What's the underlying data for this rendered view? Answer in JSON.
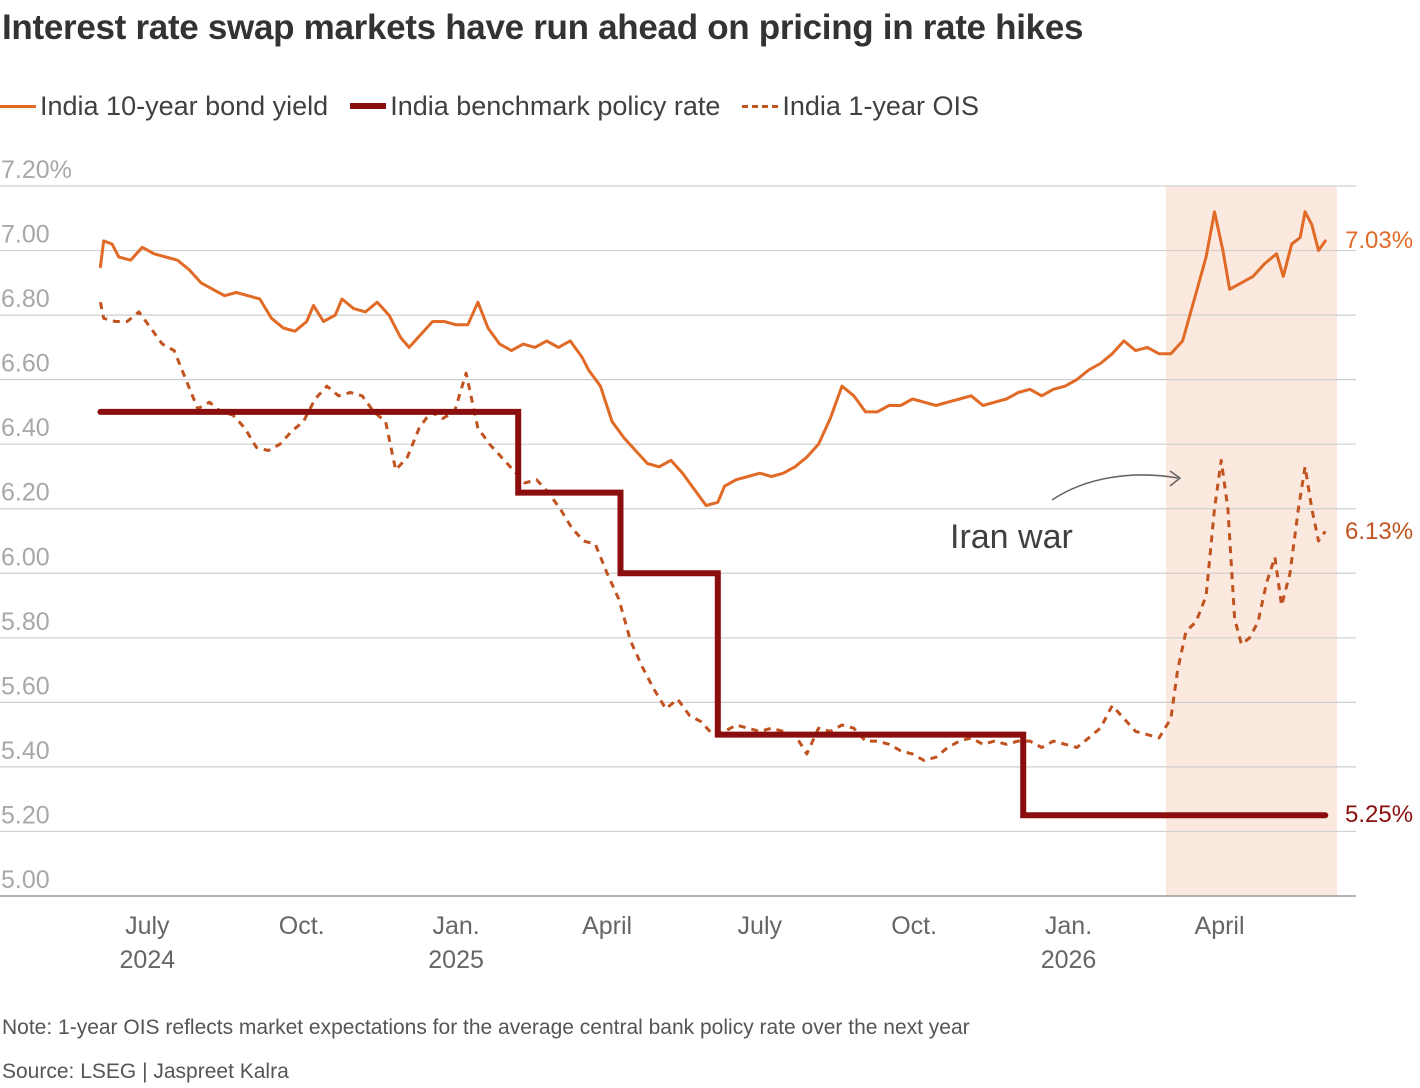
{
  "title": "Interest rate swap markets have run ahead on pricing in rate hikes",
  "legend": {
    "bond": "India 10-year bond yield",
    "policy": "India benchmark policy rate",
    "ois": "India 1-year OIS"
  },
  "note": "Note: 1-year OIS reflects market expectations for the average central bank policy rate over the next year",
  "source": "Source: LSEG | Jaspreet Kalra",
  "colors": {
    "bond": "#e06a26",
    "policy": "#8b0e0e",
    "ois": "#c0531f",
    "shade": "#fbe9df",
    "grid": "#cfcfcf",
    "tick": "#a8a8a8"
  },
  "chart_data": {
    "type": "line",
    "x_range": [
      "2024-06-01",
      "2026-06-10"
    ],
    "ylim": [
      5.0,
      7.2
    ],
    "y_ticks": [
      {
        "value": 7.2,
        "label": "7.20%"
      },
      {
        "value": 7.0,
        "label": "7.00"
      },
      {
        "value": 6.8,
        "label": "6.80"
      },
      {
        "value": 6.6,
        "label": "6.60"
      },
      {
        "value": 6.4,
        "label": "6.40"
      },
      {
        "value": 6.2,
        "label": "6.20"
      },
      {
        "value": 6.0,
        "label": "6.00"
      },
      {
        "value": 5.8,
        "label": "5.80"
      },
      {
        "value": 5.6,
        "label": "5.60"
      },
      {
        "value": 5.4,
        "label": "5.40"
      },
      {
        "value": 5.2,
        "label": "5.20"
      },
      {
        "value": 5.0,
        "label": "5.00"
      }
    ],
    "x_ticks": [
      {
        "date": "2024-07-01",
        "line1": "July",
        "line2": "2024"
      },
      {
        "date": "2024-10-01",
        "line1": "Oct.",
        "line2": ""
      },
      {
        "date": "2025-01-01",
        "line1": "Jan.",
        "line2": "2025"
      },
      {
        "date": "2025-04-01",
        "line1": "April",
        "line2": ""
      },
      {
        "date": "2025-07-01",
        "line1": "July",
        "line2": ""
      },
      {
        "date": "2025-10-01",
        "line1": "Oct.",
        "line2": ""
      },
      {
        "date": "2026-01-01",
        "line1": "Jan.",
        "line2": "2026"
      },
      {
        "date": "2026-04-01",
        "line1": "April",
        "line2": ""
      }
    ],
    "shaded_region": {
      "start": "2026-02-28",
      "end": "2026-06-10"
    },
    "annotation": {
      "text": "Iran war"
    },
    "end_labels": {
      "bond": "7.03%",
      "ois": "6.13%",
      "policy": "5.25%"
    },
    "series": [
      {
        "name": "India 10-year bond yield",
        "key": "bond",
        "points": [
          [
            "2024-06-03",
            6.95
          ],
          [
            "2024-06-05",
            7.03
          ],
          [
            "2024-06-10",
            7.02
          ],
          [
            "2024-06-14",
            6.98
          ],
          [
            "2024-06-21",
            6.97
          ],
          [
            "2024-06-28",
            7.01
          ],
          [
            "2024-07-05",
            6.99
          ],
          [
            "2024-07-12",
            6.98
          ],
          [
            "2024-07-19",
            6.97
          ],
          [
            "2024-07-26",
            6.94
          ],
          [
            "2024-08-02",
            6.9
          ],
          [
            "2024-08-09",
            6.88
          ],
          [
            "2024-08-16",
            6.86
          ],
          [
            "2024-08-23",
            6.87
          ],
          [
            "2024-08-30",
            6.86
          ],
          [
            "2024-09-06",
            6.85
          ],
          [
            "2024-09-13",
            6.79
          ],
          [
            "2024-09-20",
            6.76
          ],
          [
            "2024-09-27",
            6.75
          ],
          [
            "2024-10-04",
            6.78
          ],
          [
            "2024-10-08",
            6.83
          ],
          [
            "2024-10-14",
            6.78
          ],
          [
            "2024-10-21",
            6.8
          ],
          [
            "2024-10-25",
            6.85
          ],
          [
            "2024-11-01",
            6.82
          ],
          [
            "2024-11-08",
            6.81
          ],
          [
            "2024-11-15",
            6.84
          ],
          [
            "2024-11-22",
            6.8
          ],
          [
            "2024-11-29",
            6.73
          ],
          [
            "2024-12-04",
            6.7
          ],
          [
            "2024-12-11",
            6.74
          ],
          [
            "2024-12-18",
            6.78
          ],
          [
            "2024-12-25",
            6.78
          ],
          [
            "2025-01-01",
            6.77
          ],
          [
            "2025-01-08",
            6.77
          ],
          [
            "2025-01-14",
            6.84
          ],
          [
            "2025-01-20",
            6.76
          ],
          [
            "2025-01-27",
            6.71
          ],
          [
            "2025-02-03",
            6.69
          ],
          [
            "2025-02-10",
            6.71
          ],
          [
            "2025-02-17",
            6.7
          ],
          [
            "2025-02-24",
            6.72
          ],
          [
            "2025-03-03",
            6.7
          ],
          [
            "2025-03-10",
            6.72
          ],
          [
            "2025-03-17",
            6.67
          ],
          [
            "2025-03-21",
            6.63
          ],
          [
            "2025-03-28",
            6.58
          ],
          [
            "2025-04-04",
            6.47
          ],
          [
            "2025-04-11",
            6.42
          ],
          [
            "2025-04-18",
            6.38
          ],
          [
            "2025-04-25",
            6.34
          ],
          [
            "2025-05-02",
            6.33
          ],
          [
            "2025-05-09",
            6.35
          ],
          [
            "2025-05-16",
            6.31
          ],
          [
            "2025-05-23",
            6.26
          ],
          [
            "2025-05-30",
            6.21
          ],
          [
            "2025-06-06",
            6.22
          ],
          [
            "2025-06-10",
            6.27
          ],
          [
            "2025-06-17",
            6.29
          ],
          [
            "2025-06-24",
            6.3
          ],
          [
            "2025-07-01",
            6.31
          ],
          [
            "2025-07-08",
            6.3
          ],
          [
            "2025-07-15",
            6.31
          ],
          [
            "2025-07-22",
            6.33
          ],
          [
            "2025-07-29",
            6.36
          ],
          [
            "2025-08-05",
            6.4
          ],
          [
            "2025-08-12",
            6.48
          ],
          [
            "2025-08-19",
            6.58
          ],
          [
            "2025-08-26",
            6.55
          ],
          [
            "2025-09-02",
            6.5
          ],
          [
            "2025-09-09",
            6.5
          ],
          [
            "2025-09-16",
            6.52
          ],
          [
            "2025-09-23",
            6.52
          ],
          [
            "2025-09-30",
            6.54
          ],
          [
            "2025-10-07",
            6.53
          ],
          [
            "2025-10-14",
            6.52
          ],
          [
            "2025-10-21",
            6.53
          ],
          [
            "2025-10-28",
            6.54
          ],
          [
            "2025-11-04",
            6.55
          ],
          [
            "2025-11-11",
            6.52
          ],
          [
            "2025-11-18",
            6.53
          ],
          [
            "2025-11-25",
            6.54
          ],
          [
            "2025-12-02",
            6.56
          ],
          [
            "2025-12-09",
            6.57
          ],
          [
            "2025-12-16",
            6.55
          ],
          [
            "2025-12-23",
            6.57
          ],
          [
            "2025-12-30",
            6.58
          ],
          [
            "2026-01-06",
            6.6
          ],
          [
            "2026-01-13",
            6.63
          ],
          [
            "2026-01-20",
            6.65
          ],
          [
            "2026-01-27",
            6.68
          ],
          [
            "2026-02-03",
            6.72
          ],
          [
            "2026-02-10",
            6.69
          ],
          [
            "2026-02-17",
            6.7
          ],
          [
            "2026-02-24",
            6.68
          ],
          [
            "2026-03-03",
            6.68
          ],
          [
            "2026-03-10",
            6.72
          ],
          [
            "2026-03-17",
            6.85
          ],
          [
            "2026-03-24",
            6.98
          ],
          [
            "2026-03-29",
            7.12
          ],
          [
            "2026-04-03",
            7.0
          ],
          [
            "2026-04-07",
            6.88
          ],
          [
            "2026-04-14",
            6.9
          ],
          [
            "2026-04-21",
            6.92
          ],
          [
            "2026-04-28",
            6.96
          ],
          [
            "2026-05-05",
            6.99
          ],
          [
            "2026-05-09",
            6.92
          ],
          [
            "2026-05-14",
            7.02
          ],
          [
            "2026-05-19",
            7.04
          ],
          [
            "2026-05-22",
            7.12
          ],
          [
            "2026-05-26",
            7.08
          ],
          [
            "2026-05-30",
            7.0
          ],
          [
            "2026-06-03",
            7.03
          ]
        ]
      },
      {
        "name": "India benchmark policy rate",
        "key": "policy",
        "points": [
          [
            "2024-06-03",
            6.5
          ],
          [
            "2025-02-07",
            6.5
          ],
          [
            "2025-02-07",
            6.25
          ],
          [
            "2025-04-09",
            6.25
          ],
          [
            "2025-04-09",
            6.0
          ],
          [
            "2025-06-06",
            6.0
          ],
          [
            "2025-06-06",
            5.5
          ],
          [
            "2025-12-05",
            5.5
          ],
          [
            "2025-12-05",
            5.25
          ],
          [
            "2026-06-03",
            5.25
          ]
        ]
      },
      {
        "name": "India 1-year OIS",
        "key": "ois",
        "points": [
          [
            "2024-06-03",
            6.84
          ],
          [
            "2024-06-05",
            6.79
          ],
          [
            "2024-06-12",
            6.78
          ],
          [
            "2024-06-19",
            6.78
          ],
          [
            "2024-06-26",
            6.81
          ],
          [
            "2024-07-03",
            6.76
          ],
          [
            "2024-07-10",
            6.71
          ],
          [
            "2024-07-17",
            6.69
          ],
          [
            "2024-07-24",
            6.6
          ],
          [
            "2024-07-31",
            6.51
          ],
          [
            "2024-08-07",
            6.53
          ],
          [
            "2024-08-14",
            6.5
          ],
          [
            "2024-08-21",
            6.49
          ],
          [
            "2024-08-28",
            6.45
          ],
          [
            "2024-09-04",
            6.39
          ],
          [
            "2024-09-11",
            6.38
          ],
          [
            "2024-09-18",
            6.4
          ],
          [
            "2024-09-25",
            6.44
          ],
          [
            "2024-10-02",
            6.47
          ],
          [
            "2024-10-09",
            6.54
          ],
          [
            "2024-10-16",
            6.58
          ],
          [
            "2024-10-23",
            6.55
          ],
          [
            "2024-10-30",
            6.56
          ],
          [
            "2024-11-06",
            6.55
          ],
          [
            "2024-11-13",
            6.5
          ],
          [
            "2024-11-20",
            6.47
          ],
          [
            "2024-11-26",
            6.32
          ],
          [
            "2024-12-03",
            6.36
          ],
          [
            "2024-12-10",
            6.45
          ],
          [
            "2024-12-17",
            6.5
          ],
          [
            "2024-12-24",
            6.48
          ],
          [
            "2024-12-31",
            6.5
          ],
          [
            "2025-01-07",
            6.62
          ],
          [
            "2025-01-14",
            6.45
          ],
          [
            "2025-01-21",
            6.4
          ],
          [
            "2025-01-28",
            6.36
          ],
          [
            "2025-02-04",
            6.32
          ],
          [
            "2025-02-11",
            6.28
          ],
          [
            "2025-02-18",
            6.29
          ],
          [
            "2025-02-25",
            6.25
          ],
          [
            "2025-03-04",
            6.2
          ],
          [
            "2025-03-11",
            6.14
          ],
          [
            "2025-03-18",
            6.1
          ],
          [
            "2025-03-25",
            6.09
          ],
          [
            "2025-04-01",
            6.0
          ],
          [
            "2025-04-08",
            5.92
          ],
          [
            "2025-04-15",
            5.79
          ],
          [
            "2025-04-22",
            5.71
          ],
          [
            "2025-04-29",
            5.64
          ],
          [
            "2025-05-06",
            5.58
          ],
          [
            "2025-05-13",
            5.61
          ],
          [
            "2025-05-20",
            5.56
          ],
          [
            "2025-05-27",
            5.54
          ],
          [
            "2025-06-03",
            5.5
          ],
          [
            "2025-06-10",
            5.51
          ],
          [
            "2025-06-17",
            5.53
          ],
          [
            "2025-06-24",
            5.52
          ],
          [
            "2025-07-01",
            5.51
          ],
          [
            "2025-07-08",
            5.52
          ],
          [
            "2025-07-15",
            5.51
          ],
          [
            "2025-07-22",
            5.5
          ],
          [
            "2025-07-29",
            5.44
          ],
          [
            "2025-08-05",
            5.52
          ],
          [
            "2025-08-12",
            5.51
          ],
          [
            "2025-08-19",
            5.53
          ],
          [
            "2025-08-26",
            5.52
          ],
          [
            "2025-09-02",
            5.48
          ],
          [
            "2025-09-09",
            5.48
          ],
          [
            "2025-09-16",
            5.47
          ],
          [
            "2025-09-23",
            5.45
          ],
          [
            "2025-09-30",
            5.44
          ],
          [
            "2025-10-07",
            5.42
          ],
          [
            "2025-10-14",
            5.43
          ],
          [
            "2025-10-21",
            5.46
          ],
          [
            "2025-10-28",
            5.48
          ],
          [
            "2025-11-04",
            5.49
          ],
          [
            "2025-11-11",
            5.47
          ],
          [
            "2025-11-18",
            5.48
          ],
          [
            "2025-11-25",
            5.47
          ],
          [
            "2025-12-02",
            5.48
          ],
          [
            "2025-12-09",
            5.48
          ],
          [
            "2025-12-16",
            5.46
          ],
          [
            "2025-12-23",
            5.48
          ],
          [
            "2025-12-30",
            5.47
          ],
          [
            "2026-01-06",
            5.46
          ],
          [
            "2026-01-13",
            5.49
          ],
          [
            "2026-01-20",
            5.52
          ],
          [
            "2026-01-27",
            5.59
          ],
          [
            "2026-02-03",
            5.55
          ],
          [
            "2026-02-10",
            5.51
          ],
          [
            "2026-02-17",
            5.5
          ],
          [
            "2026-02-24",
            5.49
          ],
          [
            "2026-03-03",
            5.55
          ],
          [
            "2026-03-07",
            5.7
          ],
          [
            "2026-03-12",
            5.82
          ],
          [
            "2026-03-18",
            5.85
          ],
          [
            "2026-03-24",
            5.93
          ],
          [
            "2026-03-29",
            6.2
          ],
          [
            "2026-04-02",
            6.35
          ],
          [
            "2026-04-06",
            6.2
          ],
          [
            "2026-04-10",
            5.86
          ],
          [
            "2026-04-14",
            5.78
          ],
          [
            "2026-04-19",
            5.8
          ],
          [
            "2026-04-24",
            5.85
          ],
          [
            "2026-04-29",
            5.97
          ],
          [
            "2026-05-04",
            6.05
          ],
          [
            "2026-05-08",
            5.9
          ],
          [
            "2026-05-13",
            6.0
          ],
          [
            "2026-05-18",
            6.2
          ],
          [
            "2026-05-22",
            6.33
          ],
          [
            "2026-05-26",
            6.2
          ],
          [
            "2026-05-30",
            6.1
          ],
          [
            "2026-06-03",
            6.13
          ]
        ]
      }
    ]
  }
}
